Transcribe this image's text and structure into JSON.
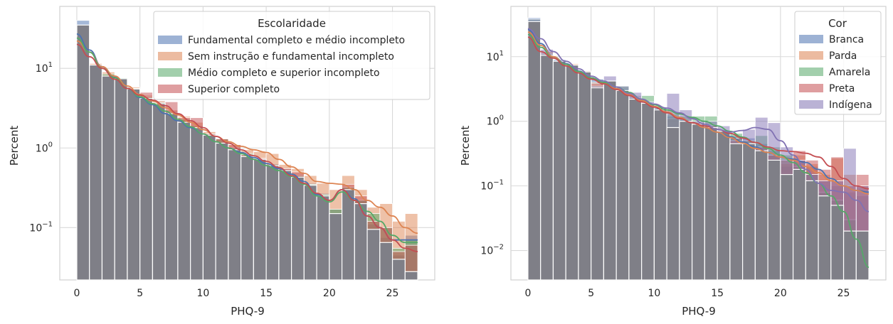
{
  "colors": {
    "blue": "#4c72b0",
    "orange": "#dd8452",
    "green": "#55a868",
    "red": "#c44e52",
    "purple": "#8172b3",
    "overlap": "#7f7f87",
    "grid": "#d9d9d9",
    "background": "#ffffff"
  },
  "chart_data": [
    {
      "type": "bar",
      "description_type": "histogram with kde lines",
      "xlabel": "PHQ-9",
      "ylabel": "Percent",
      "yscale": "log",
      "xlim": [
        -1.35,
        28.35
      ],
      "ylim": [
        0.022,
        60
      ],
      "xticks": [
        0,
        5,
        10,
        15,
        20,
        25
      ],
      "yticks": [
        {
          "value": 10,
          "base": "10",
          "exp": "1"
        },
        {
          "value": 1,
          "base": "10",
          "exp": "0"
        },
        {
          "value": 0.1,
          "base": "10",
          "exp": "−1"
        }
      ],
      "grid": true,
      "legend": {
        "title": "Escolaridade",
        "placement": "top-right"
      },
      "bin_start": 0,
      "bin_width": 1,
      "overlap_values": [
        35,
        11,
        8,
        7.4,
        5.5,
        4.2,
        3.6,
        2.7,
        2.1,
        1.8,
        1.45,
        1.15,
        0.95,
        0.78,
        0.72,
        0.6,
        0.52,
        0.43,
        0.34,
        0.25,
        0.15,
        0.3,
        0.2,
        0.095,
        0.065,
        0.04,
        0.028
      ],
      "series": [
        {
          "name": "Fundamental completo e médio incompleto",
          "color_key": "blue",
          "values": [
            40,
            11,
            8.2,
            7.6,
            5.6,
            4.2,
            3.8,
            2.9,
            2.2,
            1.9,
            1.5,
            1.2,
            1.0,
            0.82,
            0.75,
            0.63,
            0.55,
            0.46,
            0.36,
            0.27,
            0.17,
            0.32,
            0.22,
            0.11,
            0.075,
            0.045,
            0.08
          ],
          "kde": [
            27,
            17,
            10.5,
            7.7,
            5.6,
            4.3,
            3.5,
            2.7,
            2.2,
            1.8,
            1.5,
            1.2,
            1.0,
            0.88,
            0.76,
            0.64,
            0.55,
            0.47,
            0.38,
            0.26,
            0.22,
            0.3,
            0.23,
            0.14,
            0.1,
            0.07,
            0.07,
            0.07
          ]
        },
        {
          "name": "Sem instrução e fundamental incompleto",
          "color_key": "orange",
          "values": [
            30,
            11.5,
            9,
            7.5,
            5.8,
            4.6,
            3.9,
            3.0,
            2.5,
            2.1,
            1.6,
            1.3,
            1.1,
            0.95,
            0.9,
            0.85,
            0.62,
            0.55,
            0.45,
            0.36,
            0.3,
            0.45,
            0.3,
            0.18,
            0.2,
            0.12,
            0.15
          ],
          "kde": [
            22,
            16,
            10.5,
            8,
            6,
            4.7,
            3.9,
            3.2,
            2.6,
            2.1,
            1.7,
            1.4,
            1.2,
            1.05,
            0.95,
            0.88,
            0.72,
            0.58,
            0.48,
            0.38,
            0.36,
            0.35,
            0.3,
            0.22,
            0.18,
            0.14,
            0.1,
            0.085
          ]
        },
        {
          "name": "Médio completo e superior incompleto",
          "color_key": "green",
          "values": [
            33,
            11,
            8.5,
            7.6,
            5.6,
            4.4,
            3.7,
            2.8,
            2.3,
            1.8,
            1.5,
            1.3,
            1.0,
            0.85,
            0.72,
            0.6,
            0.52,
            0.45,
            0.35,
            0.26,
            0.17,
            0.32,
            0.22,
            0.15,
            0.1,
            0.055,
            0.07
          ],
          "kde": [
            24,
            16,
            10,
            7.6,
            5.6,
            4.4,
            3.6,
            2.9,
            2.3,
            1.85,
            1.5,
            1.2,
            1.0,
            0.85,
            0.72,
            0.6,
            0.52,
            0.44,
            0.35,
            0.25,
            0.21,
            0.28,
            0.22,
            0.16,
            0.12,
            0.08,
            0.065,
            0.065
          ]
        },
        {
          "name": "Superior completo",
          "color_key": "red",
          "values": [
            28,
            11,
            8,
            7.4,
            5.5,
            5.0,
            3.6,
            3.8,
            2.4,
            2.4,
            1.5,
            1.3,
            1.1,
            0.82,
            0.74,
            0.6,
            0.55,
            0.5,
            0.3,
            0.25,
            0.12,
            0.35,
            0.25,
            0.12,
            0.1,
            0.05,
            0.06
          ],
          "kde": [
            20,
            14,
            10,
            7.3,
            5.6,
            4.6,
            4.0,
            3.4,
            2.7,
            2.2,
            1.8,
            1.4,
            1.15,
            0.95,
            0.8,
            0.68,
            0.57,
            0.45,
            0.36,
            0.27,
            0.22,
            0.3,
            0.22,
            0.14,
            0.1,
            0.07,
            0.055,
            0.05
          ]
        }
      ]
    },
    {
      "type": "bar",
      "description_type": "histogram with kde lines",
      "xlabel": "PHQ-9",
      "ylabel": "Percent",
      "yscale": "log",
      "xlim": [
        -1.35,
        28.35
      ],
      "ylim": [
        0.0035,
        60
      ],
      "xticks": [
        0,
        5,
        10,
        15,
        20,
        25
      ],
      "yticks": [
        {
          "value": 10,
          "base": "10",
          "exp": "1"
        },
        {
          "value": 1,
          "base": "10",
          "exp": "0"
        },
        {
          "value": 0.1,
          "base": "10",
          "exp": "−1"
        },
        {
          "value": 0.01,
          "base": "10",
          "exp": "−2"
        }
      ],
      "grid": true,
      "legend": {
        "title": "Cor",
        "placement": "top-right"
      },
      "bin_start": 0,
      "bin_width": 1,
      "overlap_values": [
        35,
        10.5,
        8.5,
        7.4,
        5.8,
        3.3,
        4.2,
        3.0,
        2.2,
        1.9,
        1.5,
        0.8,
        1.0,
        0.9,
        0.8,
        0.7,
        0.45,
        0.45,
        0.35,
        0.25,
        0.15,
        0.18,
        0.12,
        0.07,
        0.05,
        0.02,
        0.02
      ],
      "series": [
        {
          "name": "Branca",
          "color_key": "blue",
          "values": [
            40,
            11,
            9,
            7.5,
            6,
            4.5,
            4.3,
            3.2,
            2.5,
            2.0,
            1.6,
            1.2,
            1.05,
            0.95,
            0.85,
            0.72,
            0.6,
            0.55,
            0.45,
            0.35,
            0.2,
            0.25,
            0.2,
            0.12,
            0.1,
            0.08,
            0.07
          ],
          "kde": [
            26,
            16,
            10,
            7.8,
            6,
            4.7,
            3.9,
            3.2,
            2.6,
            2.1,
            1.7,
            1.4,
            1.15,
            0.95,
            0.8,
            0.68,
            0.58,
            0.48,
            0.4,
            0.33,
            0.28,
            0.26,
            0.23,
            0.18,
            0.13,
            0.1,
            0.085,
            0.08
          ]
        },
        {
          "name": "Parda",
          "color_key": "orange",
          "values": [
            35,
            12,
            8.5,
            7.8,
            6,
            4.0,
            4.2,
            3.0,
            2.4,
            1.9,
            1.5,
            1.1,
            1.0,
            0.92,
            0.8,
            0.68,
            0.58,
            0.5,
            0.28,
            0.3,
            0.22,
            0.3,
            0.22,
            0.15,
            0.27,
            0.15,
            0.1
          ],
          "kde": [
            24,
            15,
            10,
            7.6,
            5.9,
            4.6,
            3.9,
            3.2,
            2.6,
            2.1,
            1.7,
            1.4,
            1.15,
            0.95,
            0.8,
            0.68,
            0.56,
            0.46,
            0.38,
            0.33,
            0.28,
            0.25,
            0.2,
            0.16,
            0.12,
            0.1,
            0.085,
            0.075
          ]
        },
        {
          "name": "Amarela",
          "color_key": "green",
          "values": [
            38,
            11,
            8.2,
            7.5,
            5.5,
            3.6,
            4.0,
            3.5,
            2.3,
            2.5,
            1.6,
            1.3,
            1.2,
            1.2,
            1.2,
            0.6,
            0.65,
            0.5,
            0.6,
            0.4,
            0.3,
            0.2,
            0.15,
            0.08,
            0.06,
            0.03,
            0.006
          ],
          "kde": [
            22,
            14,
            9.5,
            7.6,
            5.9,
            4.7,
            4.0,
            3.4,
            2.8,
            2.2,
            1.8,
            1.5,
            1.3,
            1.15,
            1.0,
            0.85,
            0.7,
            0.57,
            0.47,
            0.38,
            0.3,
            0.23,
            0.16,
            0.11,
            0.07,
            0.04,
            0.015,
            0.0055
          ]
        },
        {
          "name": "Preta",
          "color_key": "red",
          "values": [
            32,
            10,
            8,
            7.3,
            5.5,
            3.8,
            4.0,
            3.0,
            2.2,
            1.8,
            1.5,
            0.8,
            1.0,
            0.95,
            0.85,
            0.7,
            0.5,
            0.45,
            0.4,
            0.3,
            0.25,
            0.35,
            0.25,
            0.18,
            0.28,
            0.1,
            0.15
          ],
          "kde": [
            20,
            12,
            9.5,
            7.2,
            5.6,
            4.5,
            3.8,
            3.1,
            2.5,
            2.0,
            1.65,
            1.35,
            1.1,
            0.95,
            0.85,
            0.75,
            0.65,
            0.55,
            0.47,
            0.4,
            0.35,
            0.34,
            0.32,
            0.28,
            0.2,
            0.13,
            0.1,
            0.09
          ]
        },
        {
          "name": "Indígena",
          "color_key": "purple",
          "values": [
            38,
            13,
            8.5,
            6.5,
            5.5,
            3.5,
            5.0,
            3.5,
            2.8,
            2.0,
            1.6,
            2.7,
            1.5,
            1.0,
            1.0,
            0.85,
            0.55,
            0.75,
            1.15,
            0.95,
            0.4,
            0.25,
            0.15,
            0.12,
            0.12,
            0.38,
            0.1
          ],
          "kde": [
            27,
            19,
            12,
            8.5,
            6.5,
            5.0,
            4.2,
            3.4,
            2.7,
            2.2,
            1.85,
            1.6,
            1.35,
            1.1,
            0.9,
            0.75,
            0.68,
            0.72,
            0.8,
            0.75,
            0.5,
            0.3,
            0.18,
            0.11,
            0.085,
            0.08,
            0.06,
            0.04
          ]
        }
      ]
    }
  ]
}
